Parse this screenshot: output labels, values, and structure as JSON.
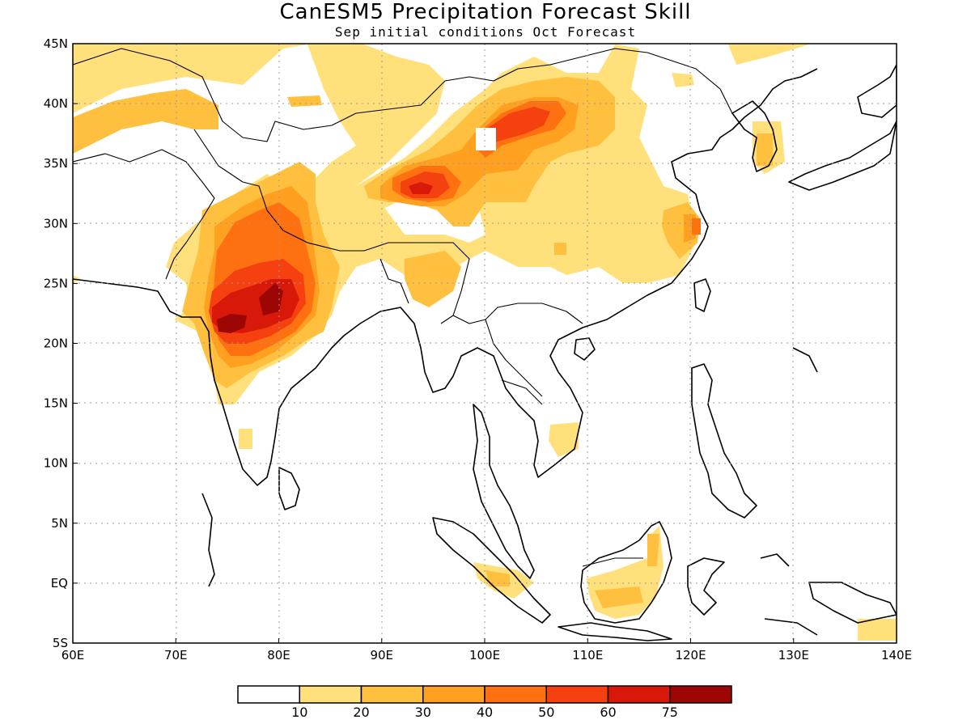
{
  "title": "CanESM5 Precipitation Forecast Skill",
  "subtitle": "Sep initial conditions  Oct Forecast",
  "map": {
    "lon_range": [
      60,
      140
    ],
    "lat_range": [
      -5,
      45
    ],
    "grid": true,
    "x_ticks": [
      "60E",
      "70E",
      "80E",
      "90E",
      "100E",
      "110E",
      "120E",
      "130E",
      "140E"
    ],
    "y_ticks": [
      "5S",
      "EQ",
      "5N",
      "10N",
      "15N",
      "20N",
      "25N",
      "30N",
      "35N",
      "40N",
      "45N"
    ]
  },
  "colorbar": {
    "colors": [
      "#ffffff",
      "#ffe07a",
      "#ffc040",
      "#ffa020",
      "#ff7010",
      "#f54010",
      "#d81808",
      "#9c0604"
    ],
    "labels": [
      "10",
      "20",
      "30",
      "40",
      "50",
      "60",
      "75"
    ]
  }
}
